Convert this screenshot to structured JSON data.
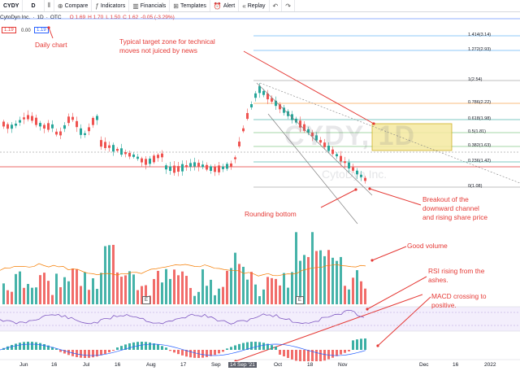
{
  "toolbar": {
    "symbol": "CYDY",
    "interval": "D",
    "compare": "Compare",
    "indicators": "Indicators",
    "financials": "Financials",
    "templates": "Templates",
    "alert": "Alert",
    "replay": "Replay"
  },
  "legend": {
    "name": "CytoDyn Inc.",
    "interval": "1D",
    "exchange": "OTC",
    "o": "O 1.69",
    "h": "H 1.70",
    "l": "L 1.50",
    "c": "C 1.62",
    "chg": "-0.05 (-3.29%)",
    "bid": "1.19",
    "spread": "0.00",
    "ask": "1.19"
  },
  "watermark": {
    "symbol": "CYDY, 1D",
    "name": "CytoDyn Inc."
  },
  "fib_levels": [
    {
      "label": "1.414(3.14)"
    },
    {
      "label": "1.272(2.93)"
    },
    {
      "label": "1(2.54)"
    },
    {
      "label": "0.786(2.22)"
    },
    {
      "label": "0.618(1.98)"
    },
    {
      "label": "0.5(1.81)"
    },
    {
      "label": "0.382(1.63)"
    },
    {
      "label": "0.236(1.42)"
    },
    {
      "label": "0(1.08)"
    }
  ],
  "annotations": {
    "daily_chart": "Daily chart",
    "target_zone_1": "Typical target zone for technical",
    "target_zone_2": "moves not juiced by news",
    "rounding_bottom": "Rounding bottom",
    "breakout_1": "Breakout of the",
    "breakout_2": "downward channel",
    "breakout_3": "and rising share price",
    "good_volume": "Good volume",
    "rsi_1": "RSI rising from the",
    "rsi_2": "ashes.",
    "macd_1": "MACD crossing to",
    "macd_2": "positive."
  },
  "x_axis": [
    "Jun",
    "16",
    "Jul",
    "16",
    "Aug",
    "17",
    "Sep",
    "14 Sep '21",
    "Oct",
    "18",
    "Nov",
    "Dec",
    "16",
    "2022"
  ],
  "events": [
    "E",
    "E"
  ],
  "colors": {
    "up": "#26a69a",
    "down": "#ef5350",
    "annotation": "#e53935",
    "rsi": "#7e57c2",
    "target_zone": "#f5e9a0",
    "price_line": "#e53935"
  }
}
